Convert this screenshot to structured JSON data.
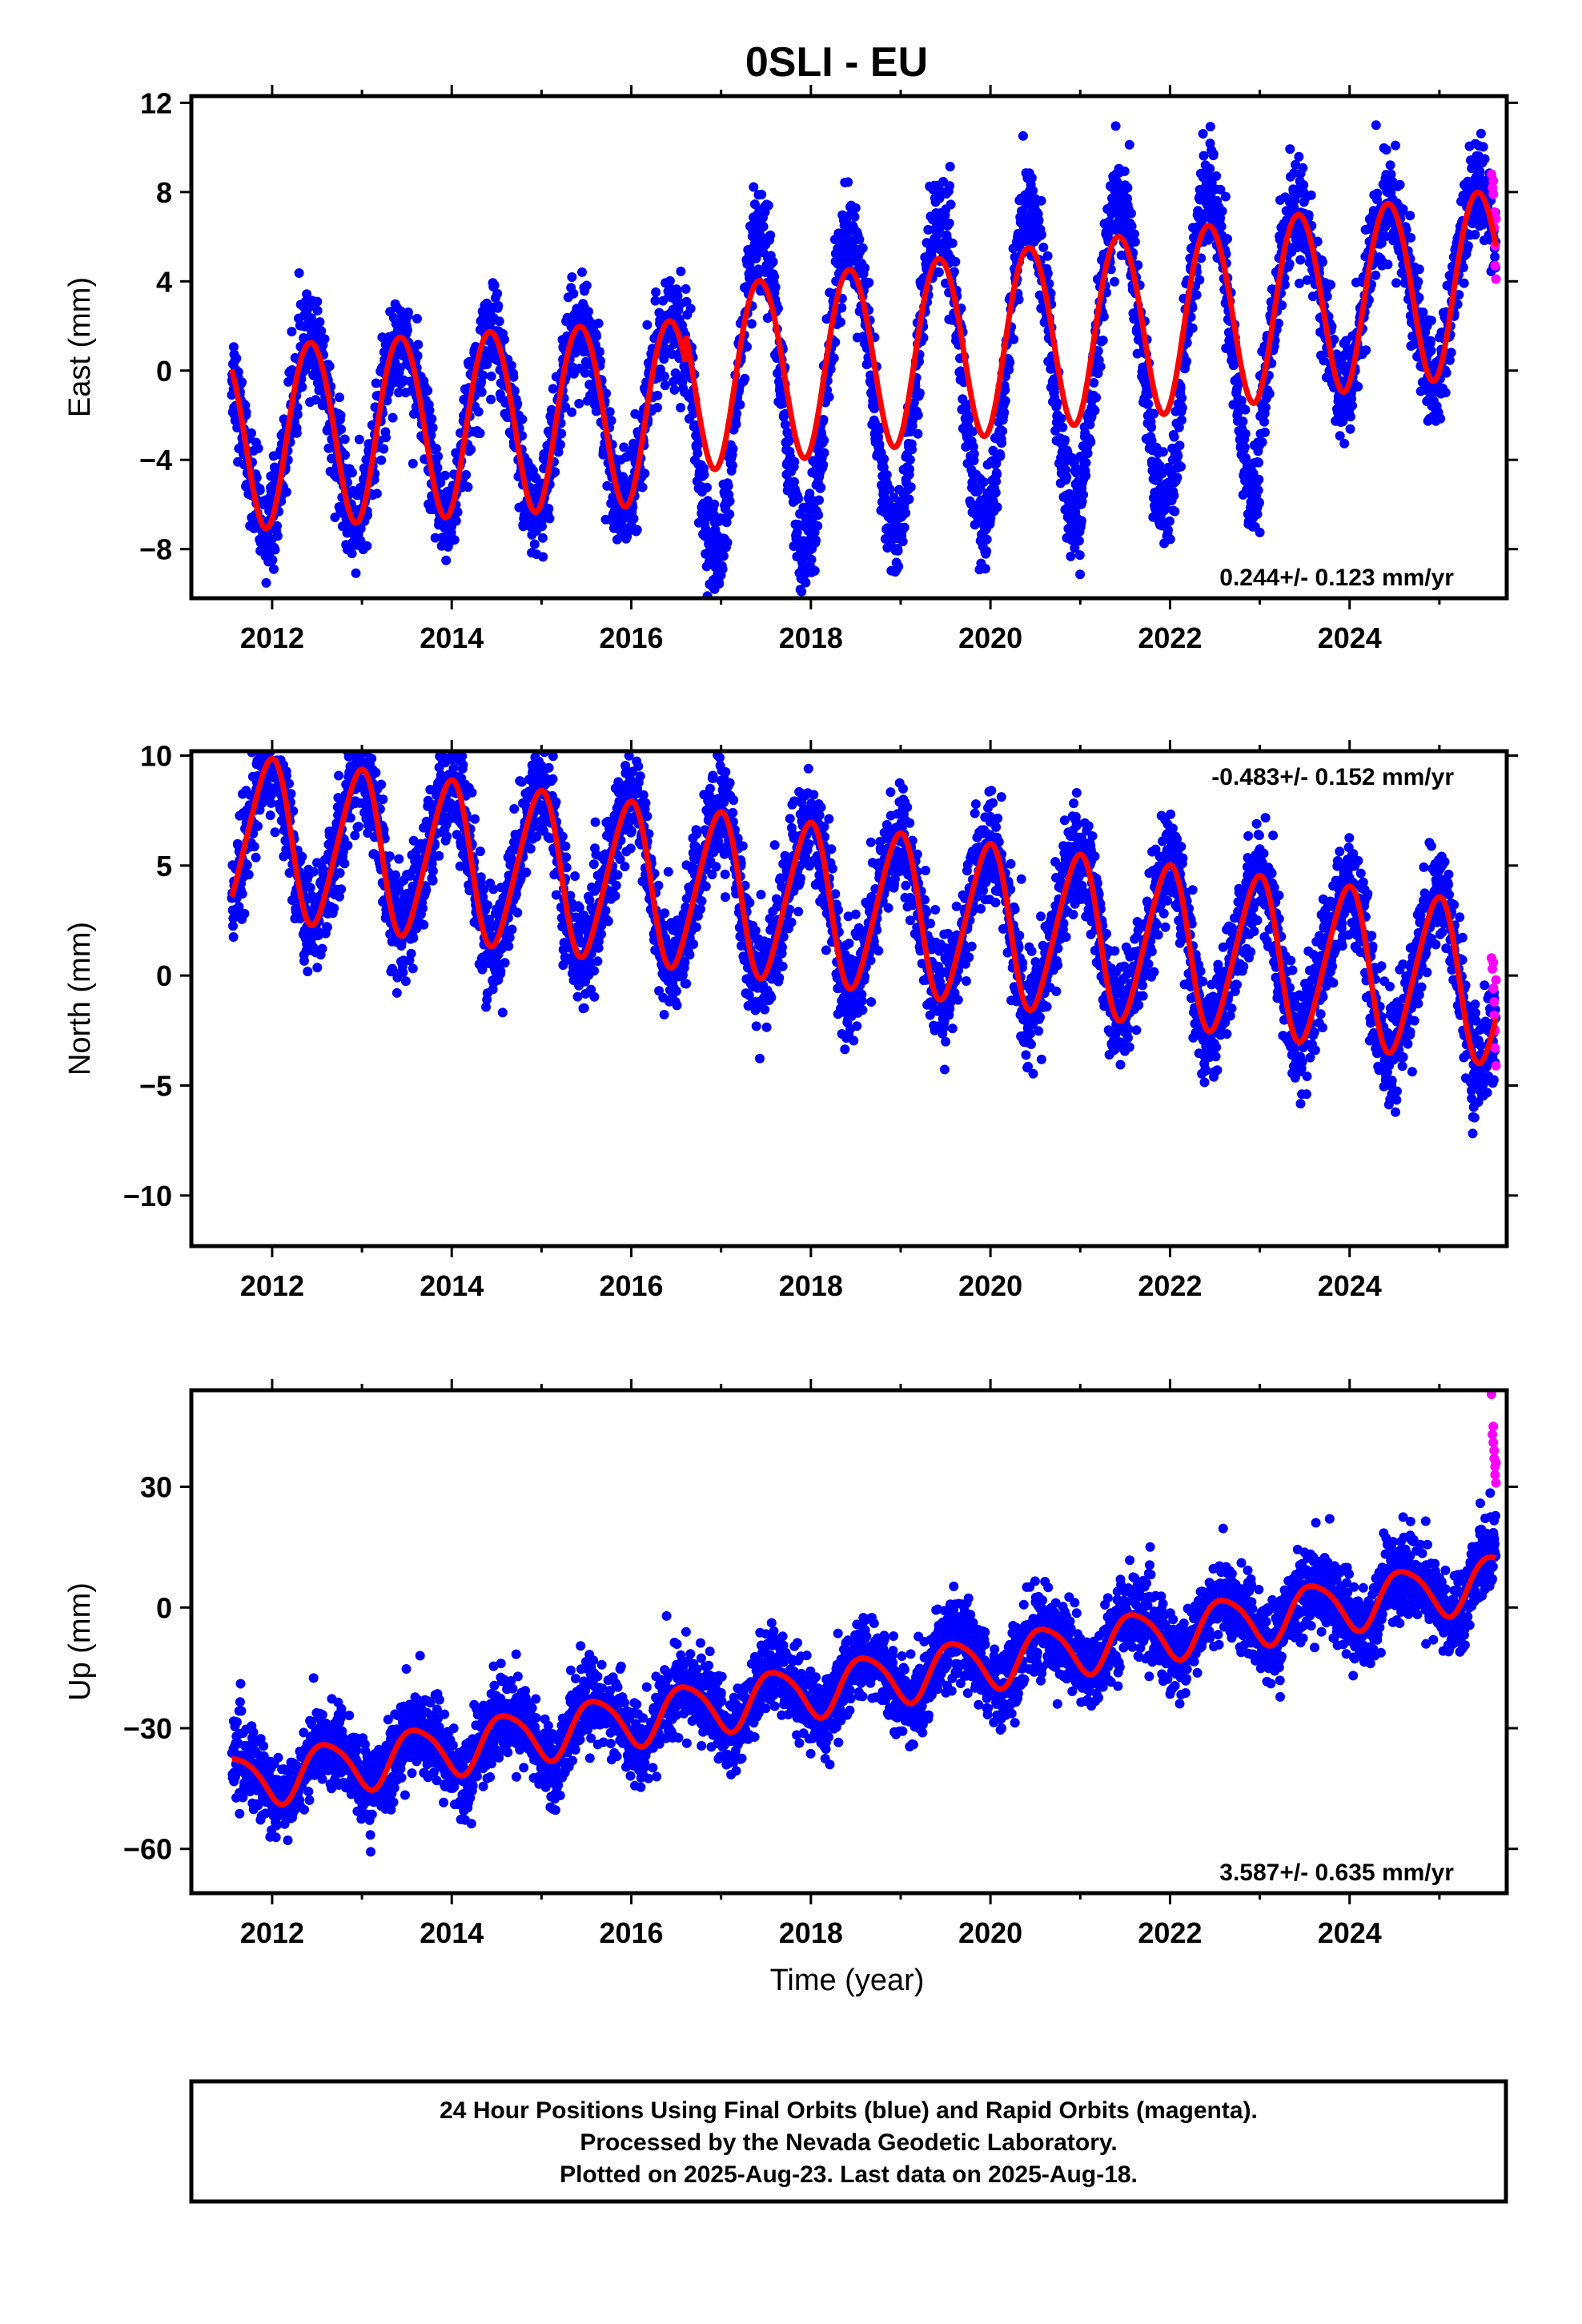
{
  "title": "0SLI - EU",
  "xlabel": "Time (year)",
  "footer": {
    "line1": "24 Hour Positions Using Final Orbits (blue) and Rapid Orbits (magenta).",
    "line2": "Processed by the Nevada Geodetic Laboratory.",
    "line3": "Plotted on 2025-Aug-23. Last data on 2025-Aug-18."
  },
  "colors": {
    "final": "#0000ff",
    "rapid": "#ff00ff",
    "fit": "#ff0000",
    "frame": "#000000"
  },
  "chart_data": [
    {
      "type": "scatter",
      "ylabel": "East (mm)",
      "rate_text": "0.244+/- 0.123 mm/yr",
      "rate_position": "bottom-right",
      "xlim": [
        2011.1,
        2025.75
      ],
      "ylim": [
        -10.2,
        12.3
      ],
      "yticks": [
        -8,
        -4,
        0,
        4,
        8,
        12
      ],
      "ytick_labels": [
        "−8",
        "−4",
        "0",
        "4",
        "8",
        "12"
      ],
      "xticks": [
        2012,
        2014,
        2016,
        2018,
        2020,
        2022,
        2024
      ],
      "xtick_labels": [
        "2012",
        "2014",
        "2016",
        "2018",
        "2020",
        "2022",
        "2024"
      ],
      "data_start": 2011.55,
      "data_end": 2025.63,
      "fit": {
        "segments": [
          {
            "from": 2011.55,
            "to": 2016.6,
            "offset": -1.3,
            "rate": 0.244,
            "amp1": 4.1,
            "phase1": 2012.43,
            "amp2": 0.2,
            "phase2": 2012.2
          },
          {
            "from": 2016.6,
            "to": 2025.63,
            "offset": 0.05,
            "rate": 0.244,
            "amp1": 4.1,
            "phase1": 2012.43,
            "amp2": 0.2,
            "phase2": 2012.2
          }
        ],
        "ramp_from": 2016.6,
        "ramp_rate": 0.25
      },
      "scatter_model": {
        "extra_seasonal_amp": 2.8,
        "extra_after": 2016.6,
        "extra_until": 2023.0,
        "noise": 1.1
      },
      "rapid_points": [
        [
          2025.58,
          8.8
        ],
        [
          2025.59,
          8.2
        ],
        [
          2025.6,
          7.9
        ],
        [
          2025.61,
          7.1
        ],
        [
          2025.61,
          6.4
        ],
        [
          2025.62,
          5.6
        ],
        [
          2025.62,
          4.7
        ],
        [
          2025.63,
          4.1
        ],
        [
          2025.6,
          8.5
        ],
        [
          2025.63,
          6.8
        ]
      ]
    },
    {
      "type": "scatter",
      "ylabel": "North (mm)",
      "rate_text": "-0.483+/- 0.152 mm/yr",
      "rate_position": "top-right",
      "xlim": [
        2011.1,
        2025.75
      ],
      "ylim": [
        -12.3,
        10.2
      ],
      "yticks": [
        -10,
        -5,
        0,
        5,
        10
      ],
      "ytick_labels": [
        "−10",
        "−5",
        "0",
        "5",
        "10"
      ],
      "xticks": [
        2012,
        2014,
        2016,
        2018,
        2020,
        2022,
        2024
      ],
      "xtick_labels": [
        "2012",
        "2014",
        "2016",
        "2018",
        "2020",
        "2022",
        "2024"
      ],
      "data_start": 2011.55,
      "data_end": 2025.63,
      "fit": {
        "segments": [
          {
            "from": 2011.55,
            "to": 2025.63,
            "offset": 3.3,
            "rate": -0.483,
            "amp1": 3.6,
            "phase1": 2011.97,
            "amp2": 0.4,
            "phase2": 2012.1
          }
        ],
        "ramp_from": 2100,
        "ramp_rate": 0
      },
      "scatter_model": {
        "extra_seasonal_amp": 0.0,
        "extra_after": 2100,
        "extra_until": 2100,
        "noise": 1.2
      },
      "rapid_points": [
        [
          2025.58,
          0.8
        ],
        [
          2025.59,
          0.3
        ],
        [
          2025.6,
          -0.6
        ],
        [
          2025.61,
          -1.2
        ],
        [
          2025.61,
          -1.8
        ],
        [
          2025.62,
          -2.5
        ],
        [
          2025.62,
          -3.3
        ],
        [
          2025.63,
          -4.1
        ],
        [
          2025.6,
          0.6
        ],
        [
          2025.63,
          -0.2
        ]
      ]
    },
    {
      "type": "scatter",
      "ylabel": "Up (mm)",
      "rate_text": "3.587+/- 0.635 mm/yr",
      "rate_position": "bottom-right",
      "xlim": [
        2011.1,
        2025.75
      ],
      "ylim": [
        -71,
        54
      ],
      "yticks": [
        -60,
        -30,
        0,
        30
      ],
      "ytick_labels": [
        "−60",
        "−30",
        "0",
        "30"
      ],
      "xticks": [
        2012,
        2014,
        2016,
        2018,
        2020,
        2022,
        2024
      ],
      "xtick_labels": [
        "2012",
        "2014",
        "2016",
        "2018",
        "2020",
        "2022",
        "2024"
      ],
      "data_start": 2011.55,
      "data_end": 2025.63,
      "fit": {
        "segments": [
          {
            "from": 2011.55,
            "to": 2025.63,
            "offset": -20.5,
            "rate": 3.587,
            "amp1": 6.5,
            "phase1": 2012.6,
            "amp2": 1.0,
            "phase2": 2012.4
          }
        ],
        "ramp_from": 2100,
        "ramp_rate": 0
      },
      "scatter_model": {
        "extra_seasonal_amp": 0.0,
        "extra_after": 2100,
        "extra_until": 2100,
        "noise": 5.0
      },
      "rapid_points": [
        [
          2025.58,
          53
        ],
        [
          2025.59,
          43
        ],
        [
          2025.6,
          41
        ],
        [
          2025.61,
          39
        ],
        [
          2025.61,
          37
        ],
        [
          2025.62,
          35
        ],
        [
          2025.62,
          33
        ],
        [
          2025.63,
          31
        ],
        [
          2025.6,
          45
        ],
        [
          2025.63,
          36
        ]
      ]
    }
  ]
}
